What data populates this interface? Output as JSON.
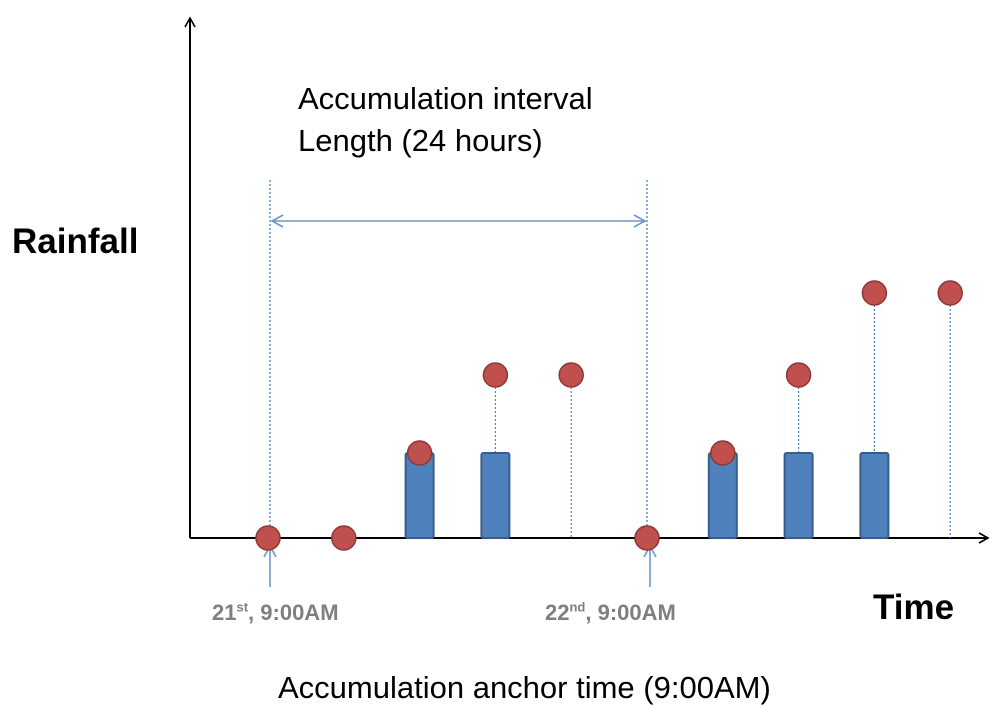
{
  "axes": {
    "y_label": "Rainfall",
    "x_label": "Time"
  },
  "interval": {
    "line1": "Accumulation interval",
    "line2": "Length (24 hours)"
  },
  "anchor": {
    "title": "Accumulation anchor time (9:00AM)",
    "tick_21": {
      "day": "21",
      "suffix": "st",
      "time": ", 9:00AM"
    },
    "tick_22": {
      "day": "22",
      "suffix": "nd",
      "time": ", 9:00AM"
    }
  },
  "colors": {
    "bar": "#4f81bd",
    "bar_edge": "#385d8a",
    "dot": "#c0504d",
    "dot_edge": "#8c3836",
    "guide": "#4f81bd",
    "axis": "#000000",
    "tick_text": "#7f7f7f"
  },
  "series": {
    "observations": [
      {
        "step": 0,
        "value": 0
      },
      {
        "step": 1,
        "value": 0
      },
      {
        "step": 2,
        "value": 1
      },
      {
        "step": 3,
        "value": 2
      },
      {
        "step": 4,
        "value": 2
      },
      {
        "step": 5,
        "value": 0
      },
      {
        "step": 6,
        "value": 1
      },
      {
        "step": 7,
        "value": 2
      },
      {
        "step": 8,
        "value": 3
      },
      {
        "step": 9,
        "value": 3
      }
    ],
    "accumulation_bars": [
      {
        "step": 2,
        "value": 1
      },
      {
        "step": 3,
        "value": 1
      },
      {
        "step": 6,
        "value": 1
      },
      {
        "step": 7,
        "value": 1
      },
      {
        "step": 8,
        "value": 1
      }
    ]
  }
}
